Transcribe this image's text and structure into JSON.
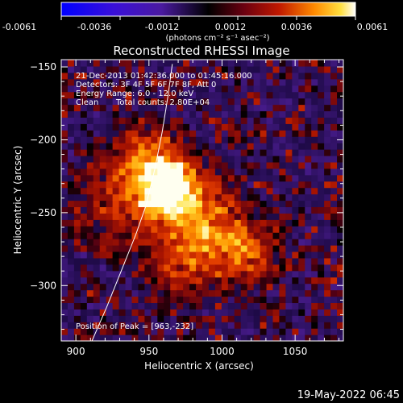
{
  "colorbar": {
    "tick_labels": [
      "-0.0061",
      "-0.0036",
      "-0.0012",
      "0.0012",
      "0.0036",
      "0.0061"
    ],
    "unit_label": "(photons cm⁻² s⁻¹ asec⁻²)",
    "range": [
      -0.0061,
      0.0061
    ]
  },
  "title": "Reconstructed RHESSI Image",
  "annotations": {
    "time_range": "21-Dec-2013 01:42:36.000 to 01:45:16.000",
    "detectors": "Detectors: 3F 4F 5F 6F 7F 8F, Att 0",
    "energy_range": "Energy Range: 6.0 - 12.0 keV",
    "method": "Clean",
    "total_counts": "Total counts: 2.80E+04",
    "peak_position": "Position of Peak = [963,-232]"
  },
  "footer_timestamp": "19-May-2022 06:45",
  "chart_data": {
    "type": "heatmap",
    "xlabel": "Heliocentric X (arcsec)",
    "ylabel": "Heliocentric Y (arcsec)",
    "xlim": [
      890,
      1083
    ],
    "ylim": [
      -338,
      -145
    ],
    "x_ticks": [
      900,
      950,
      1000,
      1050
    ],
    "y_ticks": [
      -150,
      -200,
      -250,
      -300
    ],
    "peak": [
      963,
      -232
    ],
    "limb_curve": [
      [
        911,
        -338
      ],
      [
        921,
        -315
      ],
      [
        931,
        -290
      ],
      [
        941,
        -265
      ],
      [
        948,
        -245
      ],
      [
        954,
        -220
      ],
      [
        959,
        -195
      ],
      [
        963,
        -170
      ],
      [
        966,
        -148
      ]
    ],
    "sources": [
      {
        "x": 963,
        "y": -232,
        "sigma": 14,
        "amp": 1.0
      },
      {
        "x": 950,
        "y": -215,
        "sigma": 18,
        "amp": 0.55
      },
      {
        "x": 985,
        "y": -255,
        "sigma": 20,
        "amp": 0.6
      },
      {
        "x": 1015,
        "y": -275,
        "sigma": 15,
        "amp": 0.55
      },
      {
        "x": 930,
        "y": -245,
        "sigma": 22,
        "amp": 0.35
      },
      {
        "x": 975,
        "y": -285,
        "sigma": 18,
        "amp": 0.35
      }
    ]
  }
}
